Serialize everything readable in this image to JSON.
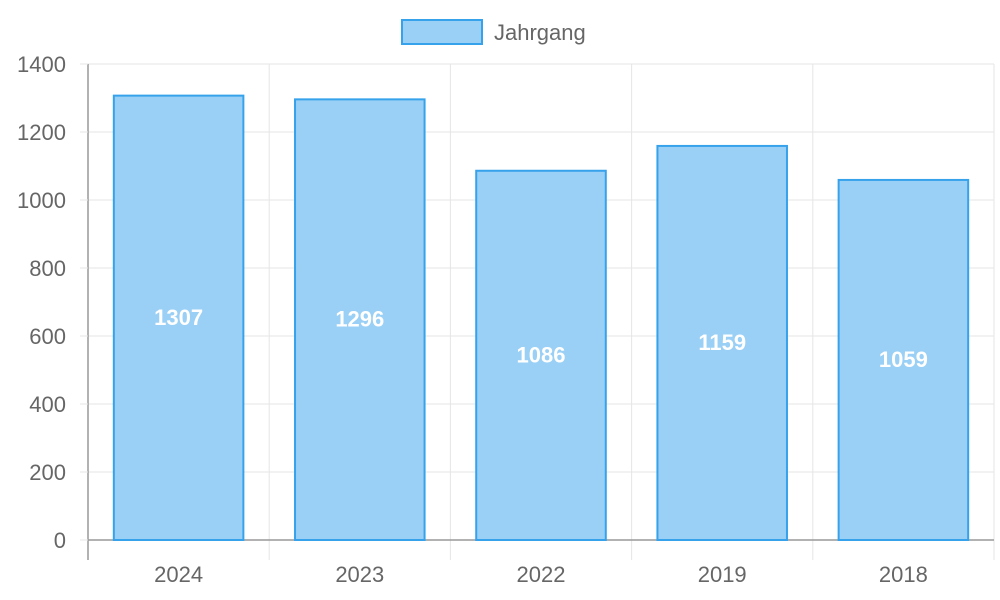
{
  "chart_data": {
    "type": "bar",
    "categories": [
      "2024",
      "2023",
      "2022",
      "2019",
      "2018"
    ],
    "series": [
      {
        "name": "Jahrgang",
        "values": [
          1307,
          1296,
          1086,
          1159,
          1059
        ]
      }
    ],
    "ylim": [
      0,
      1400
    ],
    "yticks": [
      0,
      200,
      400,
      600,
      800,
      1000,
      1200,
      1400
    ],
    "grid": true,
    "legend": "top-center",
    "colors": {
      "bar_fill": "#9ad0f5",
      "bar_stroke": "#36a2eb",
      "grid": "#e5e5e5",
      "axis": "#999999"
    }
  }
}
